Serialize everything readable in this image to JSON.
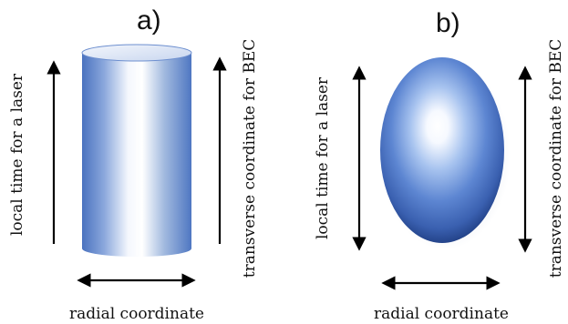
{
  "panels": [
    {
      "letter": "a)",
      "shape": "cylinder",
      "left_label": "local time for a laser",
      "right_label": "transverse coordinate for BEC",
      "bottom_label": "radial coordinate"
    },
    {
      "letter": "b)",
      "shape": "ellipsoid",
      "left_label": "local time for a laser",
      "right_label": "transverse coordinate for BEC",
      "bottom_label": "radial coordinate"
    }
  ],
  "colors": {
    "shape_dark": "#3f68b8",
    "shape_light": "#ffffff",
    "arrow": "#000000",
    "text": "#111111"
  }
}
